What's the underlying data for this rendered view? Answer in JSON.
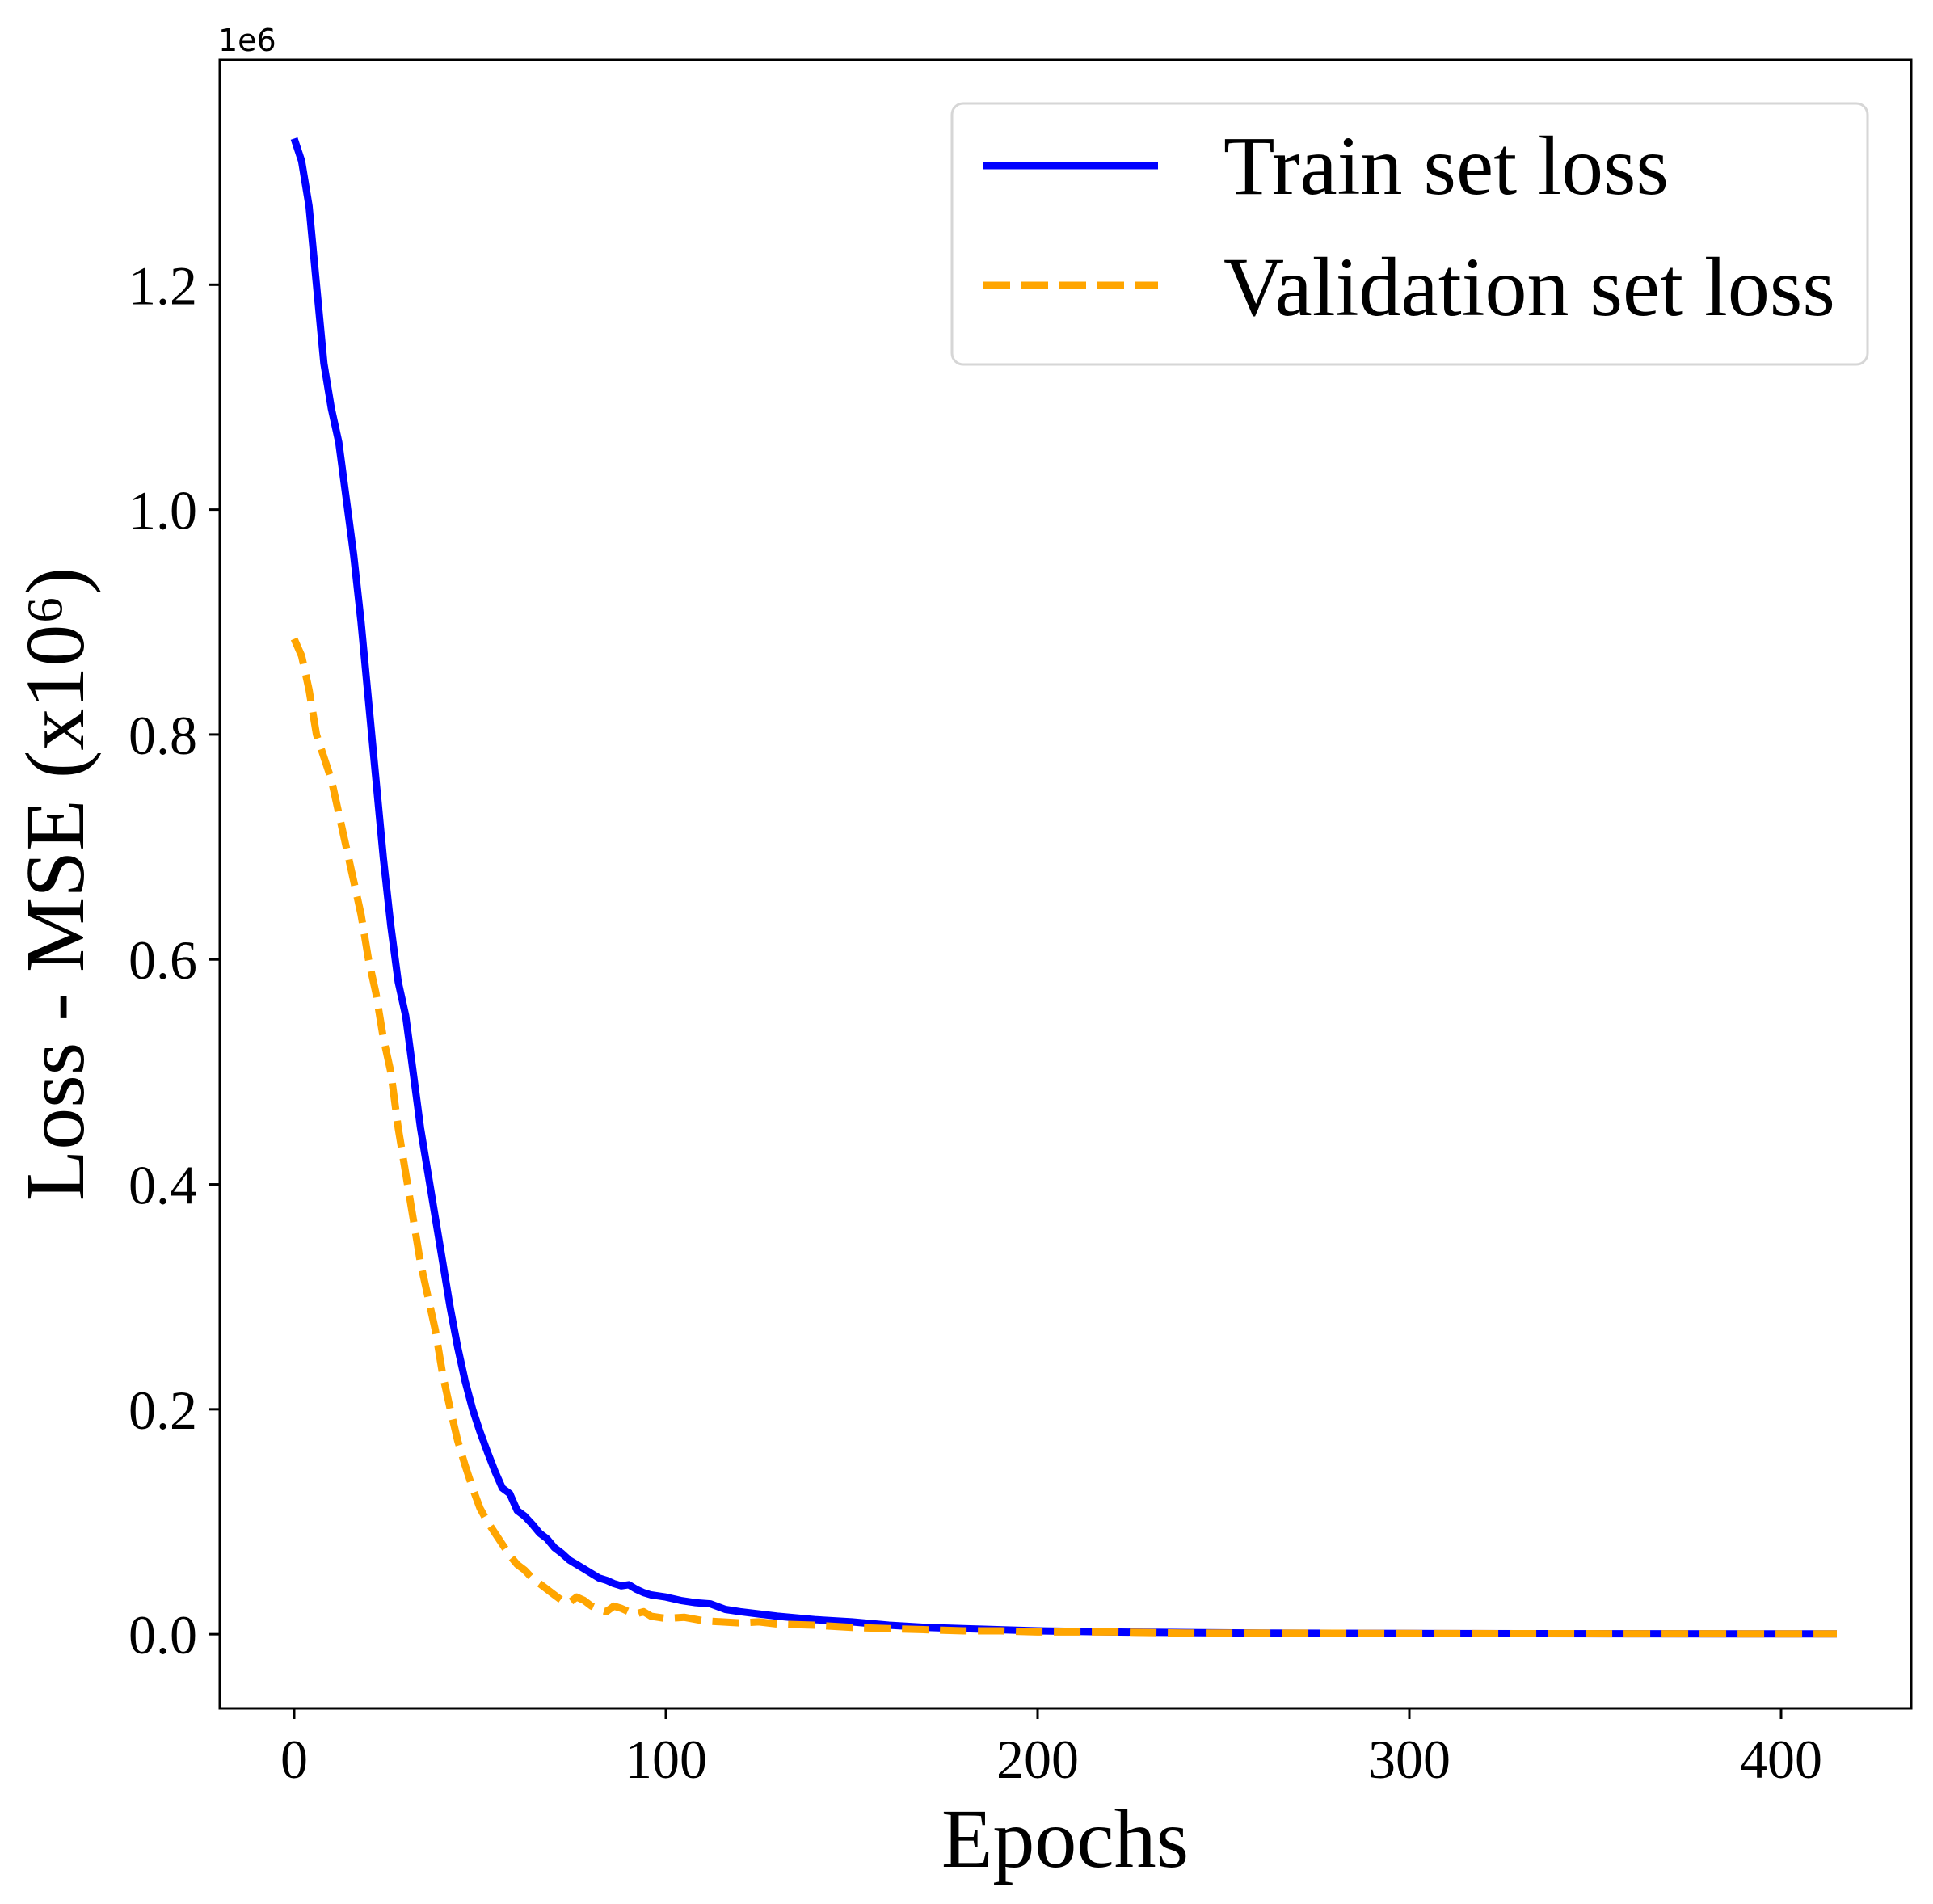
{
  "chart_data": {
    "type": "line",
    "xlabel": "Epochs",
    "ylabel": "Loss - MSE (x10⁶)",
    "offset_text": "1e6",
    "xlim": [
      -20,
      435
    ],
    "ylim": [
      -0.066,
      1.4
    ],
    "x_ticks": [
      0,
      100,
      200,
      300,
      400
    ],
    "x_tick_labels": [
      "0",
      "100",
      "200",
      "300",
      "400"
    ],
    "y_ticks": [
      0.0,
      0.2,
      0.4,
      0.6,
      0.8,
      1.0,
      1.2
    ],
    "y_tick_labels": [
      "0.0",
      "0.2",
      "0.4",
      "0.6",
      "0.8",
      "1.0",
      "1.2"
    ],
    "grid": false,
    "legend_position": "top-right",
    "series": [
      {
        "name": "Train set loss",
        "color": "#0000ff",
        "style": "solid",
        "x": [
          0,
          2,
          4,
          6,
          8,
          10,
          12,
          14,
          16,
          18,
          20,
          22,
          24,
          26,
          28,
          30,
          32,
          34,
          36,
          38,
          40,
          42,
          44,
          46,
          48,
          50,
          52,
          54,
          56,
          58,
          60,
          62,
          64,
          66,
          68,
          70,
          72,
          74,
          76,
          78,
          80,
          82,
          84,
          86,
          88,
          90,
          92,
          94,
          96,
          98,
          100,
          104,
          108,
          112,
          116,
          120,
          125,
          130,
          140,
          150,
          160,
          170,
          180,
          190,
          200,
          220,
          240,
          260,
          280,
          300,
          330,
          360,
          390,
          415
        ],
        "y": [
          1.33,
          1.31,
          1.27,
          1.2,
          1.13,
          1.09,
          1.06,
          1.01,
          0.96,
          0.9,
          0.83,
          0.76,
          0.69,
          0.63,
          0.58,
          0.55,
          0.5,
          0.45,
          0.41,
          0.37,
          0.33,
          0.29,
          0.255,
          0.225,
          0.2,
          0.18,
          0.162,
          0.145,
          0.13,
          0.125,
          0.11,
          0.105,
          0.098,
          0.09,
          0.085,
          0.077,
          0.072,
          0.066,
          0.062,
          0.058,
          0.054,
          0.05,
          0.048,
          0.045,
          0.043,
          0.044,
          0.04,
          0.037,
          0.035,
          0.034,
          0.033,
          0.03,
          0.028,
          0.027,
          0.022,
          0.02,
          0.018,
          0.016,
          0.013,
          0.011,
          0.008,
          0.006,
          0.005,
          0.004,
          0.003,
          0.002,
          0.0015,
          0.001,
          0.0008,
          0.0006,
          0.0005,
          0.0004,
          0.0003,
          0.0003
        ]
      },
      {
        "name": "Validation set loss",
        "color": "#ffa500",
        "style": "dashed",
        "x": [
          0,
          2,
          4,
          6,
          8,
          10,
          12,
          14,
          16,
          18,
          20,
          22,
          24,
          26,
          28,
          30,
          32,
          34,
          36,
          38,
          40,
          42,
          44,
          46,
          48,
          50,
          52,
          54,
          56,
          58,
          60,
          62,
          64,
          66,
          68,
          70,
          72,
          74,
          76,
          78,
          80,
          82,
          84,
          86,
          88,
          90,
          92,
          94,
          96,
          98,
          100,
          105,
          110,
          115,
          120,
          125,
          130,
          140,
          150,
          160,
          170,
          180,
          190,
          200,
          220,
          240,
          260,
          280,
          300,
          330,
          360,
          390,
          415
        ],
        "y": [
          0.885,
          0.87,
          0.84,
          0.8,
          0.78,
          0.76,
          0.73,
          0.7,
          0.67,
          0.64,
          0.6,
          0.57,
          0.53,
          0.5,
          0.45,
          0.41,
          0.37,
          0.33,
          0.3,
          0.27,
          0.23,
          0.2,
          0.172,
          0.15,
          0.13,
          0.112,
          0.1,
          0.09,
          0.08,
          0.07,
          0.062,
          0.057,
          0.05,
          0.045,
          0.04,
          0.035,
          0.03,
          0.028,
          0.033,
          0.03,
          0.025,
          0.022,
          0.02,
          0.025,
          0.023,
          0.02,
          0.018,
          0.02,
          0.016,
          0.015,
          0.014,
          0.015,
          0.012,
          0.011,
          0.01,
          0.011,
          0.009,
          0.008,
          0.006,
          0.005,
          0.004,
          0.003,
          0.003,
          0.002,
          0.002,
          0.001,
          0.001,
          0.0008,
          0.0006,
          0.0005,
          0.0004,
          0.0003,
          0.0003
        ]
      }
    ]
  }
}
